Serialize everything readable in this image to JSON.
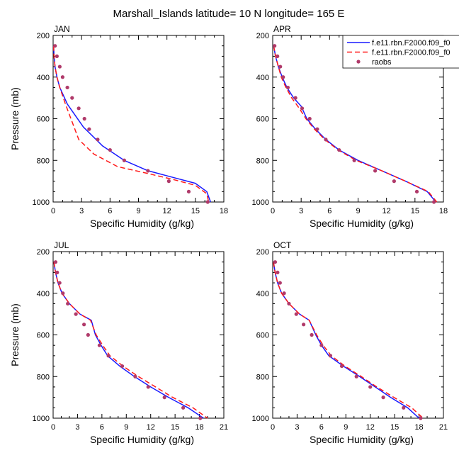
{
  "figure": {
    "title": "Marshall_Islands  latitude= 10 N longitude= 165 E"
  },
  "legend": {
    "placement": "top-right",
    "entries": [
      {
        "label": "f.e11.rbn.F2000.f09_f0",
        "style": "solid-line",
        "color": "#1a1aff"
      },
      {
        "label": "f.e11.rbn.F2000.f09_f0",
        "style": "dashed-line",
        "color": "#ff1a1a"
      },
      {
        "label": "raobs",
        "style": "marker",
        "color": "#b03a6a"
      }
    ]
  },
  "colors": {
    "model_a": "#1a1aff",
    "model_b": "#ff1a1a",
    "raobs": "#b03a6a"
  },
  "chart_data": [
    {
      "type": "line",
      "panel_label": "JAN",
      "xlabel": "Specific Humidity (g/kg)",
      "ylabel": "Pressure (mb)",
      "xlim": [
        0,
        18
      ],
      "ylim": [
        1000,
        200
      ],
      "y_reversed": true,
      "xticks": [
        0,
        3,
        6,
        9,
        12,
        15,
        18
      ],
      "yticks": [
        200,
        400,
        600,
        800,
        1000
      ],
      "series": [
        {
          "points": [
            [
              0.05,
              250
            ],
            [
              0.1,
              300
            ],
            [
              0.2,
              350
            ],
            [
              0.4,
              400
            ],
            [
              0.7,
              450
            ],
            [
              1.5,
              530
            ],
            [
              3.2,
              640
            ],
            [
              5.2,
              730
            ],
            [
              7.5,
              800
            ],
            [
              10,
              850
            ],
            [
              12.5,
              880
            ],
            [
              15,
              910
            ],
            [
              16.2,
              950
            ],
            [
              16.6,
              1000
            ]
          ]
        },
        {
          "points": [
            [
              0.05,
              250
            ],
            [
              0.1,
              300
            ],
            [
              0.2,
              350
            ],
            [
              0.4,
              400
            ],
            [
              0.7,
              450
            ],
            [
              1.3,
              530
            ],
            [
              2.7,
              700
            ],
            [
              4.3,
              770
            ],
            [
              6.8,
              830
            ],
            [
              9.7,
              860
            ],
            [
              12.5,
              890
            ],
            [
              15,
              920
            ],
            [
              16.2,
              960
            ],
            [
              16.4,
              1000
            ]
          ]
        },
        {
          "points": [
            [
              0.2,
              250
            ],
            [
              0.4,
              300
            ],
            [
              0.7,
              350
            ],
            [
              1.0,
              400
            ],
            [
              1.5,
              450
            ],
            [
              2.0,
              500
            ],
            [
              2.7,
              550
            ],
            [
              3.3,
              600
            ],
            [
              3.8,
              650
            ],
            [
              4.7,
              700
            ],
            [
              6.0,
              750
            ],
            [
              7.5,
              800
            ],
            [
              10,
              850
            ],
            [
              12.2,
              900
            ],
            [
              14.3,
              950
            ],
            [
              16.3,
              1000
            ]
          ]
        }
      ]
    },
    {
      "type": "line",
      "panel_label": "APR",
      "xlabel": "Specific Humidity (g/kg)",
      "ylabel": "",
      "xlim": [
        0,
        18
      ],
      "ylim": [
        1000,
        200
      ],
      "y_reversed": true,
      "xticks": [
        0,
        3,
        6,
        9,
        12,
        15,
        18
      ],
      "yticks": [
        200,
        400,
        600,
        800,
        1000
      ],
      "series": [
        {
          "points": [
            [
              0.1,
              250
            ],
            [
              0.3,
              300
            ],
            [
              0.6,
              350
            ],
            [
              1.0,
              400
            ],
            [
              1.5,
              450
            ],
            [
              2.2,
              500
            ],
            [
              3.0,
              540
            ],
            [
              3.6,
              600
            ],
            [
              4.5,
              650
            ],
            [
              5.6,
              700
            ],
            [
              7.0,
              750
            ],
            [
              9.0,
              800
            ],
            [
              11.5,
              850
            ],
            [
              14,
              900
            ],
            [
              16.3,
              950
            ],
            [
              17.2,
              1000
            ]
          ]
        },
        {
          "points": [
            [
              0.1,
              250
            ],
            [
              0.3,
              300
            ],
            [
              0.6,
              350
            ],
            [
              0.9,
              400
            ],
            [
              1.4,
              450
            ],
            [
              2.0,
              500
            ],
            [
              2.8,
              550
            ],
            [
              3.5,
              600
            ],
            [
              4.4,
              650
            ],
            [
              5.5,
              700
            ],
            [
              6.9,
              750
            ],
            [
              8.8,
              800
            ],
            [
              11.5,
              850
            ],
            [
              14,
              900
            ],
            [
              16.4,
              950
            ],
            [
              17.3,
              1000
            ]
          ]
        },
        {
          "points": [
            [
              0.2,
              250
            ],
            [
              0.5,
              300
            ],
            [
              0.8,
              350
            ],
            [
              1.1,
              400
            ],
            [
              1.6,
              450
            ],
            [
              2.4,
              500
            ],
            [
              3.1,
              550
            ],
            [
              3.9,
              600
            ],
            [
              4.7,
              650
            ],
            [
              5.6,
              700
            ],
            [
              7.0,
              750
            ],
            [
              8.6,
              800
            ],
            [
              10.8,
              850
            ],
            [
              12.8,
              900
            ],
            [
              15.2,
              950
            ],
            [
              17,
              1000
            ]
          ]
        }
      ]
    },
    {
      "type": "line",
      "panel_label": "JUL",
      "xlabel": "Specific Humidity (g/kg)",
      "ylabel": "Pressure (mb)",
      "xlim": [
        0,
        21
      ],
      "ylim": [
        1000,
        200
      ],
      "y_reversed": true,
      "xticks": [
        0,
        3,
        6,
        9,
        12,
        15,
        18,
        21
      ],
      "yticks": [
        200,
        400,
        600,
        800,
        1000
      ],
      "series": [
        {
          "points": [
            [
              0.1,
              250
            ],
            [
              0.3,
              300
            ],
            [
              0.6,
              350
            ],
            [
              1.1,
              400
            ],
            [
              2.0,
              450
            ],
            [
              3.3,
              500
            ],
            [
              4.7,
              530
            ],
            [
              5.2,
              600
            ],
            [
              5.9,
              650
            ],
            [
              6.7,
              700
            ],
            [
              8.2,
              750
            ],
            [
              10,
              800
            ],
            [
              12,
              850
            ],
            [
              14.2,
              900
            ],
            [
              16.6,
              950
            ],
            [
              18.5,
              1000
            ]
          ]
        },
        {
          "points": [
            [
              0.1,
              250
            ],
            [
              0.3,
              300
            ],
            [
              0.6,
              350
            ],
            [
              1.1,
              400
            ],
            [
              2.0,
              450
            ],
            [
              3.3,
              500
            ],
            [
              4.6,
              530
            ],
            [
              5.3,
              600
            ],
            [
              6.1,
              650
            ],
            [
              7.0,
              700
            ],
            [
              8.6,
              750
            ],
            [
              10.5,
              800
            ],
            [
              12.6,
              850
            ],
            [
              14.7,
              900
            ],
            [
              17.2,
              950
            ],
            [
              19,
              1000
            ]
          ]
        },
        {
          "points": [
            [
              0.3,
              250
            ],
            [
              0.5,
              300
            ],
            [
              0.8,
              350
            ],
            [
              1.2,
              400
            ],
            [
              1.8,
              450
            ],
            [
              2.8,
              500
            ],
            [
              3.8,
              550
            ],
            [
              4.3,
              600
            ],
            [
              5.7,
              650
            ],
            [
              6.8,
              700
            ],
            [
              8.5,
              750
            ],
            [
              10.1,
              800
            ],
            [
              11.7,
              850
            ],
            [
              13.7,
              900
            ],
            [
              16,
              950
            ],
            [
              18.1,
              1000
            ]
          ]
        }
      ]
    },
    {
      "type": "line",
      "panel_label": "OCT",
      "xlabel": "Specific Humidity (g/kg)",
      "ylabel": "",
      "xlim": [
        0,
        21
      ],
      "ylim": [
        1000,
        200
      ],
      "y_reversed": true,
      "xticks": [
        0,
        3,
        6,
        9,
        12,
        15,
        18,
        21
      ],
      "yticks": [
        200,
        400,
        600,
        800,
        1000
      ],
      "series": [
        {
          "points": [
            [
              0.1,
              250
            ],
            [
              0.3,
              300
            ],
            [
              0.6,
              350
            ],
            [
              1.1,
              400
            ],
            [
              2.0,
              450
            ],
            [
              3.3,
              500
            ],
            [
              4.5,
              530
            ],
            [
              5.3,
              600
            ],
            [
              6.0,
              650
            ],
            [
              6.9,
              700
            ],
            [
              8.7,
              750
            ],
            [
              10.7,
              800
            ],
            [
              12.6,
              850
            ],
            [
              14.5,
              900
            ],
            [
              16.6,
              950
            ],
            [
              18,
              1000
            ]
          ]
        },
        {
          "points": [
            [
              0.1,
              250
            ],
            [
              0.3,
              300
            ],
            [
              0.6,
              350
            ],
            [
              1.1,
              400
            ],
            [
              2.0,
              450
            ],
            [
              3.3,
              500
            ],
            [
              4.5,
              530
            ],
            [
              5.4,
              600
            ],
            [
              6.2,
              650
            ],
            [
              7.2,
              700
            ],
            [
              8.9,
              750
            ],
            [
              10.9,
              800
            ],
            [
              12.8,
              850
            ],
            [
              14.9,
              900
            ],
            [
              17.1,
              950
            ],
            [
              18.5,
              1000
            ]
          ]
        },
        {
          "points": [
            [
              0.3,
              250
            ],
            [
              0.6,
              300
            ],
            [
              0.9,
              350
            ],
            [
              1.4,
              400
            ],
            [
              2.0,
              450
            ],
            [
              2.9,
              500
            ],
            [
              3.8,
              550
            ],
            [
              4.8,
              600
            ],
            [
              6.0,
              650
            ],
            [
              7.1,
              700
            ],
            [
              8.5,
              750
            ],
            [
              10.3,
              800
            ],
            [
              12.0,
              850
            ],
            [
              13.6,
              900
            ],
            [
              16.1,
              950
            ],
            [
              18.2,
              1000
            ]
          ]
        }
      ]
    }
  ]
}
